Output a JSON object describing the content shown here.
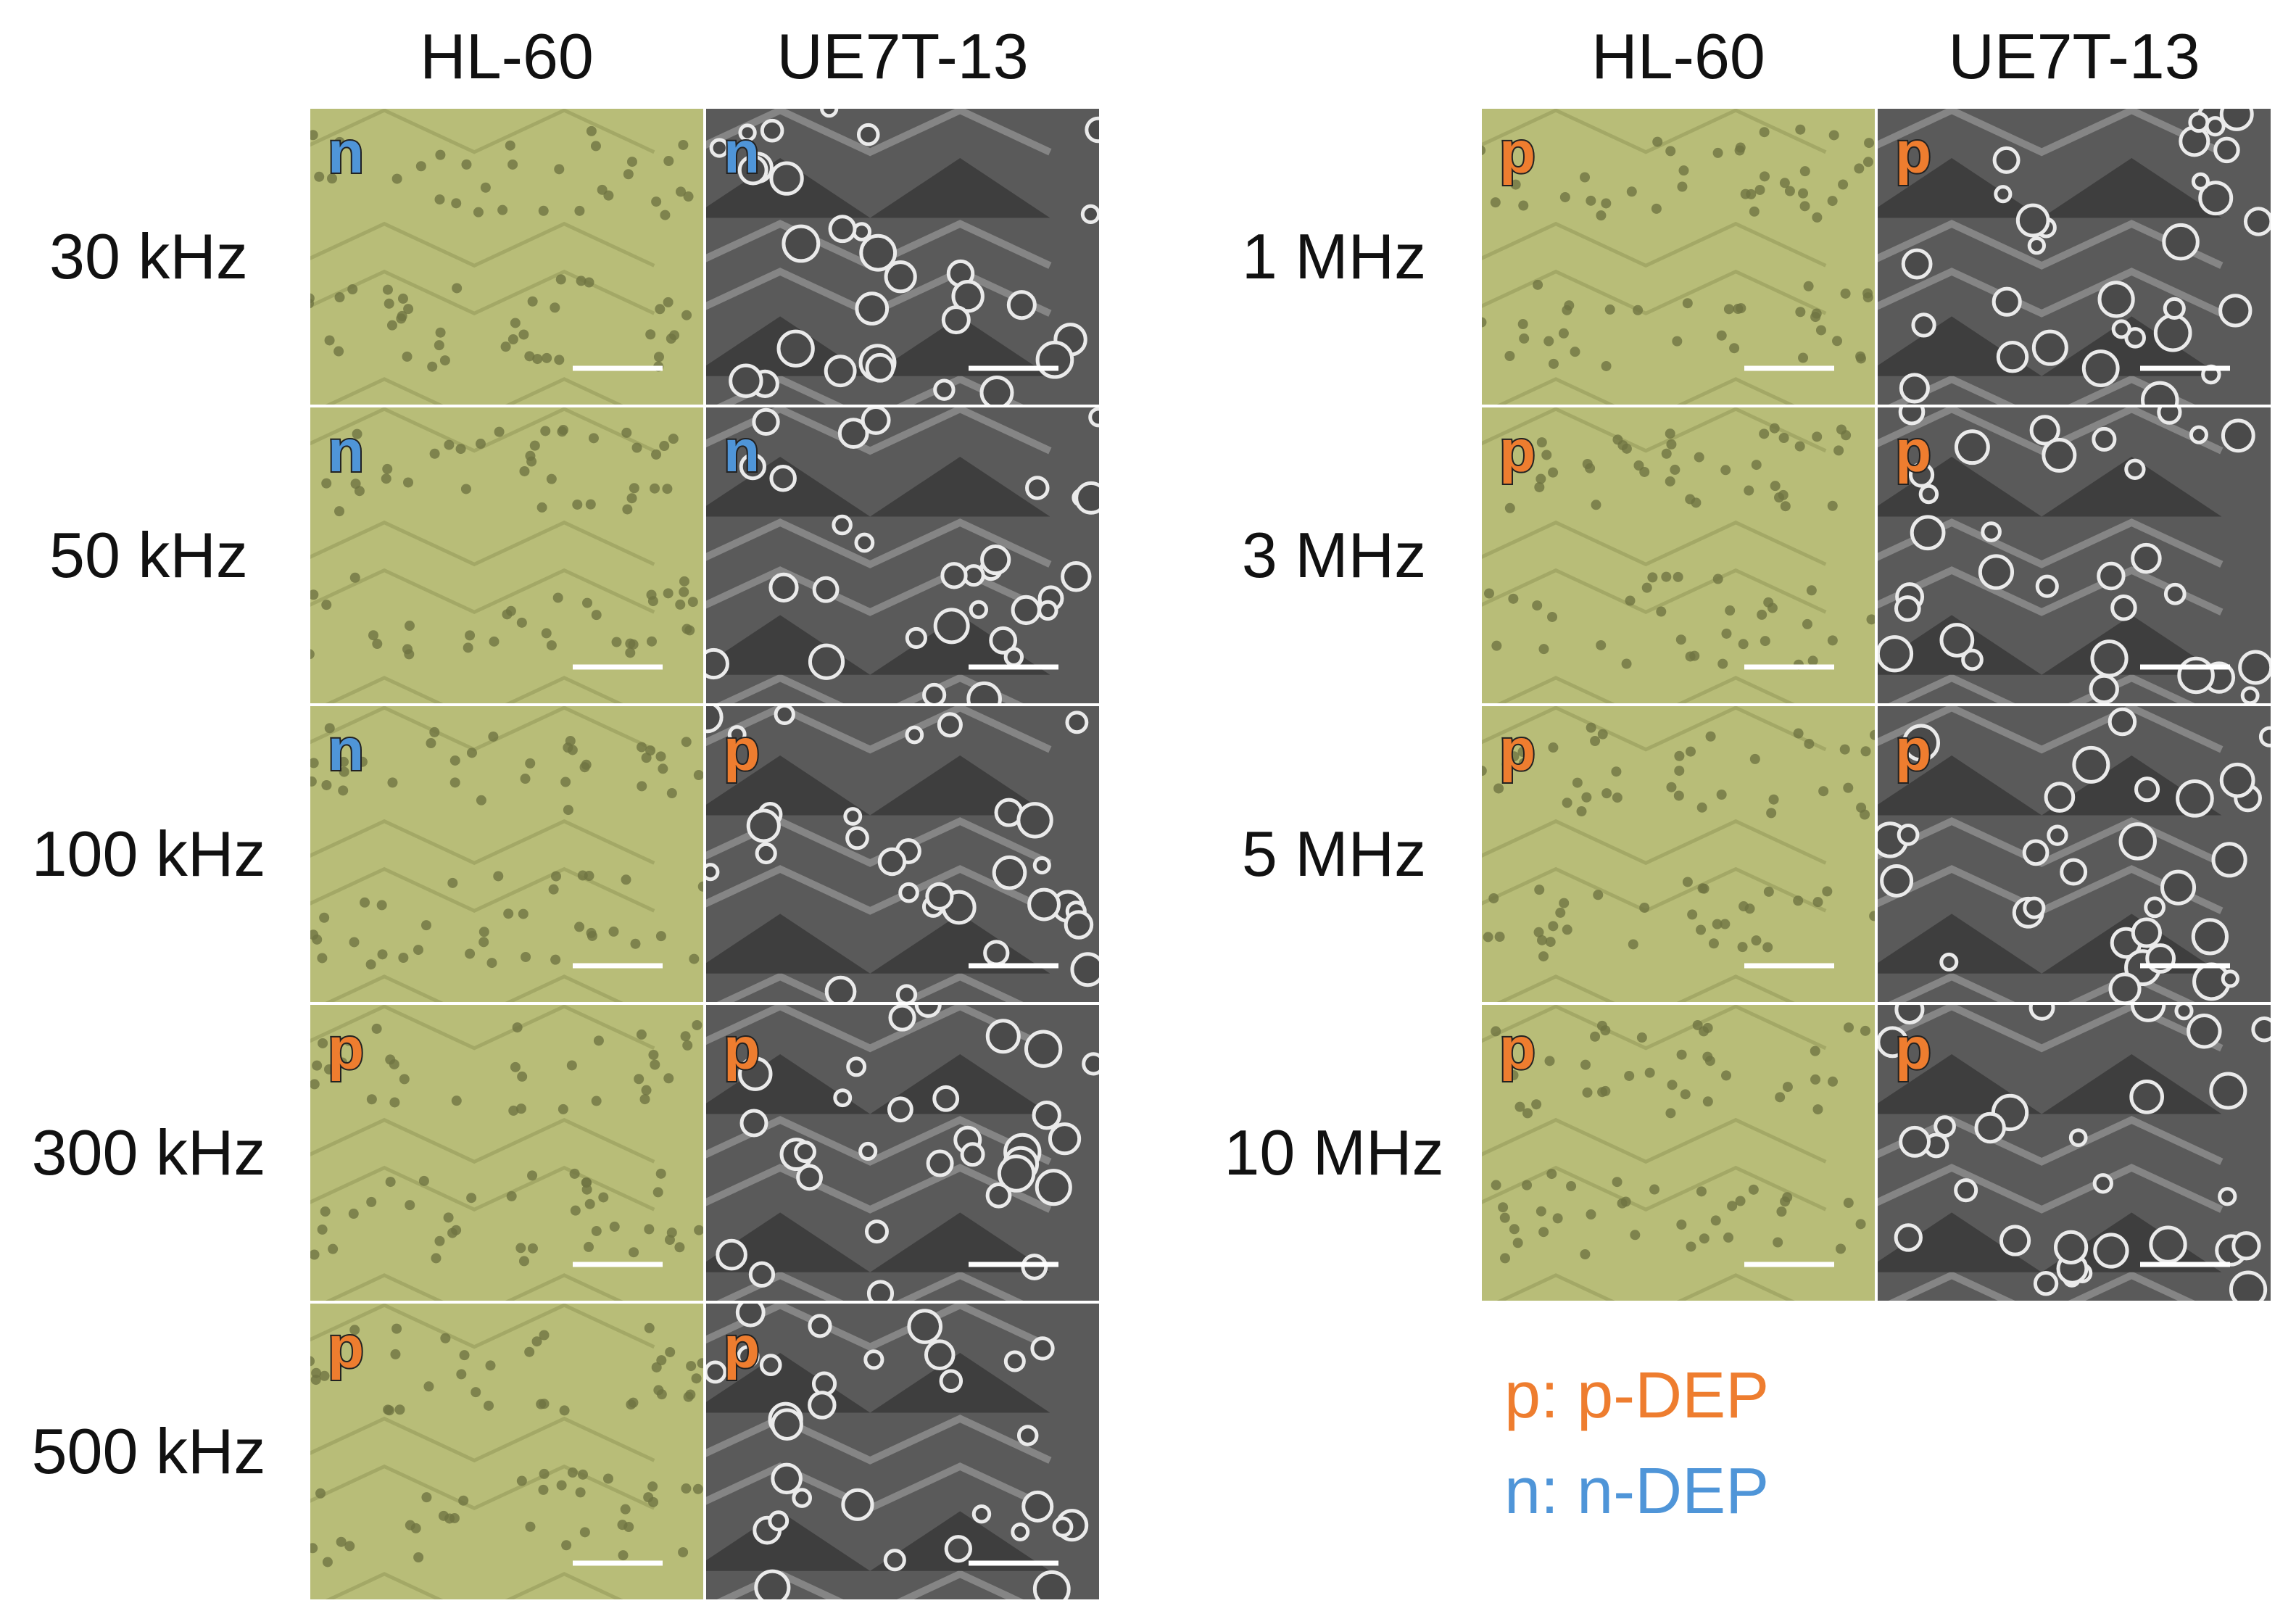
{
  "left": {
    "columns": [
      "HL-60",
      "UE7T-13"
    ],
    "rows": [
      {
        "label": "30 kHz",
        "cells": [
          {
            "label": "n",
            "color": "#4f95d8"
          },
          {
            "label": "n",
            "color": "#4f95d8"
          }
        ]
      },
      {
        "label": "50 kHz",
        "cells": [
          {
            "label": "n",
            "color": "#4f95d8"
          },
          {
            "label": "n",
            "color": "#4f95d8"
          }
        ]
      },
      {
        "label": "100 kHz",
        "cells": [
          {
            "label": "n",
            "color": "#4f95d8"
          },
          {
            "label": "p",
            "color": "#ee7d2f"
          }
        ]
      },
      {
        "label": "300 kHz",
        "cells": [
          {
            "label": "p",
            "color": "#ee7d2f"
          },
          {
            "label": "p",
            "color": "#ee7d2f"
          }
        ]
      },
      {
        "label": "500 kHz",
        "cells": [
          {
            "label": "p",
            "color": "#ee7d2f"
          },
          {
            "label": "p",
            "color": "#ee7d2f"
          }
        ]
      }
    ]
  },
  "right": {
    "columns": [
      "HL-60",
      "UE7T-13"
    ],
    "rows": [
      {
        "label": "1 MHz",
        "cells": [
          {
            "label": "p",
            "color": "#ee7d2f"
          },
          {
            "label": "p",
            "color": "#ee7d2f"
          }
        ]
      },
      {
        "label": "3 MHz",
        "cells": [
          {
            "label": "p",
            "color": "#ee7d2f"
          },
          {
            "label": "p",
            "color": "#ee7d2f"
          }
        ]
      },
      {
        "label": "5 MHz",
        "cells": [
          {
            "label": "p",
            "color": "#ee7d2f"
          },
          {
            "label": "p",
            "color": "#ee7d2f"
          }
        ]
      },
      {
        "label": "10 MHz",
        "cells": [
          {
            "label": "p",
            "color": "#ee7d2f"
          },
          {
            "label": "p",
            "color": "#ee7d2f"
          }
        ]
      }
    ]
  },
  "legend": [
    {
      "text": "p: p-DEP",
      "color": "#ee7d2f"
    },
    {
      "text": "n: n-DEP",
      "color": "#4f95d8"
    }
  ]
}
